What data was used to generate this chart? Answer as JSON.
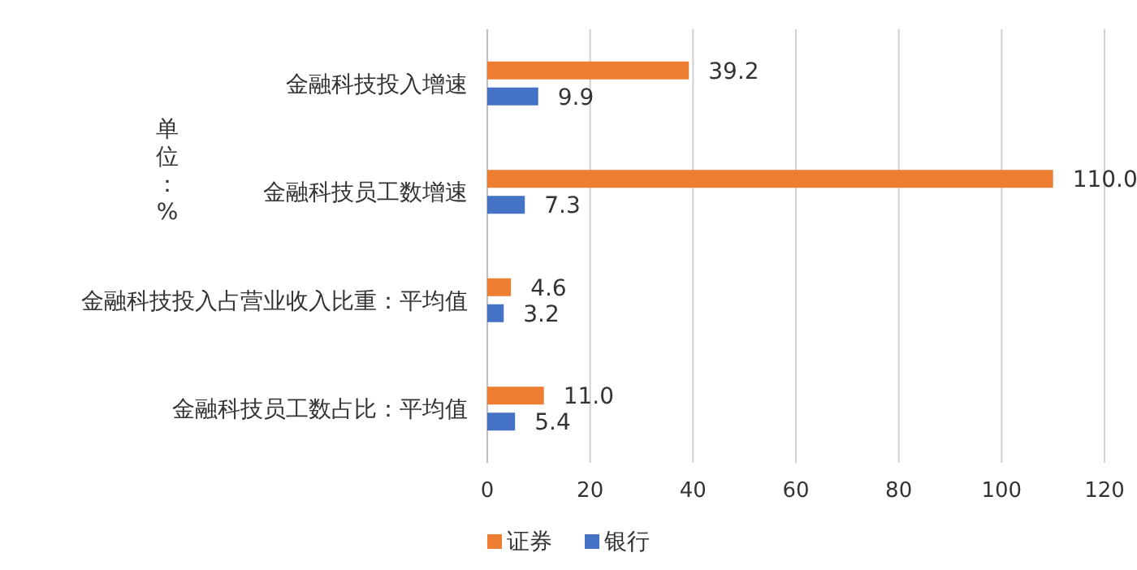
{
  "chart_data": {
    "type": "bar",
    "orientation": "horizontal",
    "ylabel": "单位：%",
    "categories": [
      "金融科技投入增速",
      "金融科技员工数增速",
      "金融科技投入占营业收入比重：平均值",
      "金融科技员工数占比：平均值"
    ],
    "series": [
      {
        "name": "证券",
        "color": "#ed7d31",
        "values": [
          39.2,
          110.0,
          4.6,
          11.0
        ],
        "value_labels": [
          "39.2",
          "110.0",
          "4.6",
          "11.0"
        ]
      },
      {
        "name": "银行",
        "color": "#4472c4",
        "values": [
          9.9,
          7.3,
          3.2,
          5.4
        ],
        "value_labels": [
          "9.9",
          "7.3",
          "3.2",
          "5.4"
        ]
      }
    ],
    "xlim": [
      0,
      120
    ],
    "xticks": [
      0,
      20,
      40,
      60,
      80,
      100,
      120
    ],
    "grid": "x",
    "legend": "bottom"
  }
}
